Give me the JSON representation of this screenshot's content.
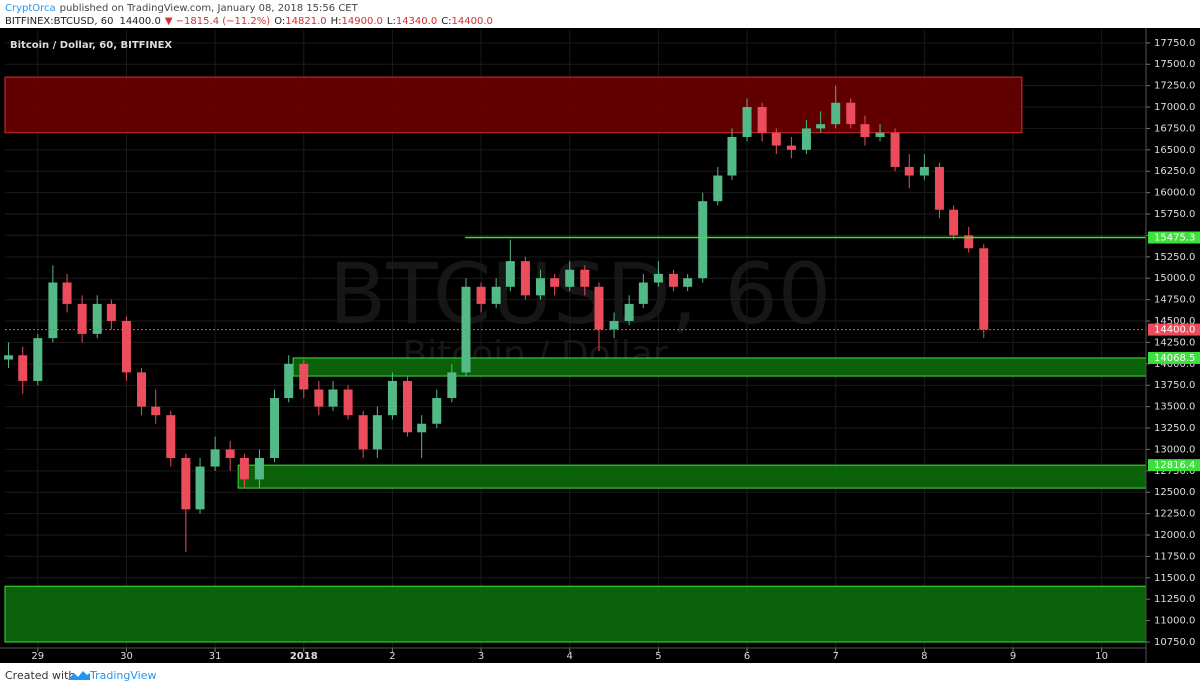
{
  "header": {
    "author": "CryptOrca",
    "published": "published on TradingView.com, January 08, 2018 15:56 CET",
    "symbol": "BITFINEX:BTCUSD, 60",
    "last": "14400.0",
    "change": "▼ −1815.4 (−11.2%)",
    "ohlc": [
      {
        "key": "O:",
        "value": "14821.0"
      },
      {
        "key": "H:",
        "value": "14900.0"
      },
      {
        "key": "L:",
        "value": "14340.0"
      },
      {
        "key": "C:",
        "value": "14400.0"
      }
    ]
  },
  "footer": {
    "created": "Created with",
    "brand": "TradingView"
  },
  "chart_data": {
    "type": "candlestick",
    "title": "Bitcoin / Dollar, 60, BITFINEX",
    "watermark": "BTCUSD, 60",
    "watermark_subtitle": "Bitcoin / Dollar",
    "up_color": "#53b987",
    "down_color": "#eb4d5c",
    "grid": true,
    "xlim": [
      -0.37,
      12.5
    ],
    "ylim": [
      10680,
      17900
    ],
    "xticks": [
      {
        "value": 0,
        "label": "29"
      },
      {
        "value": 1,
        "label": "30"
      },
      {
        "value": 2,
        "label": "31"
      },
      {
        "value": 3,
        "label": "2018"
      },
      {
        "value": 4,
        "label": "2"
      },
      {
        "value": 5,
        "label": "3"
      },
      {
        "value": 6,
        "label": "4"
      },
      {
        "value": 7,
        "label": "5"
      },
      {
        "value": 8,
        "label": "6"
      },
      {
        "value": 9,
        "label": "7"
      },
      {
        "value": 10,
        "label": "8"
      },
      {
        "value": 11,
        "label": "9"
      },
      {
        "value": 12,
        "label": "10"
      }
    ],
    "yticks": [
      {
        "value": 10750,
        "label": "10750.0"
      },
      {
        "value": 11000,
        "label": "11000.0"
      },
      {
        "value": 11250,
        "label": "11250.0"
      },
      {
        "value": 11500,
        "label": "11500.0"
      },
      {
        "value": 11750,
        "label": "11750.0"
      },
      {
        "value": 12000,
        "label": "12000.0"
      },
      {
        "value": 12250,
        "label": "12250.0"
      },
      {
        "value": 12500,
        "label": "12500.0"
      },
      {
        "value": 12750,
        "label": "12750.0"
      },
      {
        "value": 13000,
        "label": "13000.0"
      },
      {
        "value": 13250,
        "label": "13250.0"
      },
      {
        "value": 13500,
        "label": "13500.0"
      },
      {
        "value": 13750,
        "label": "13750.0"
      },
      {
        "value": 14000,
        "label": "14000.0"
      },
      {
        "value": 14250,
        "label": "14250.0"
      },
      {
        "value": 14500,
        "label": "14500.0"
      },
      {
        "value": 14750,
        "label": "14750.0"
      },
      {
        "value": 15000,
        "label": "15000.0"
      },
      {
        "value": 15250,
        "label": "15250.0"
      },
      {
        "value": 15500,
        "label": "15500.0"
      },
      {
        "value": 15750,
        "label": "15750.0"
      },
      {
        "value": 16000,
        "label": "16000.0"
      },
      {
        "value": 16250,
        "label": "16250.0"
      },
      {
        "value": 16500,
        "label": "16500.0"
      },
      {
        "value": 16750,
        "label": "16750.0"
      },
      {
        "value": 17000,
        "label": "17000.0"
      },
      {
        "value": 17250,
        "label": "17250.0"
      },
      {
        "value": 17500,
        "label": "17500.0"
      },
      {
        "value": 17750,
        "label": "17750.0"
      }
    ],
    "x": [
      -0.33,
      -0.17,
      0,
      0.17,
      0.33,
      0.5,
      0.67,
      0.83,
      1,
      1.17,
      1.33,
      1.5,
      1.67,
      1.83,
      2,
      2.17,
      2.33,
      2.5,
      2.67,
      2.83,
      3,
      3.17,
      3.33,
      3.5,
      3.67,
      3.83,
      4,
      4.17,
      4.33,
      4.5,
      4.67,
      4.83,
      5,
      5.17,
      5.33,
      5.5,
      5.67,
      5.83,
      6,
      6.17,
      6.33,
      6.5,
      6.67,
      6.83,
      7,
      7.17,
      7.33,
      7.5,
      7.67,
      7.83,
      8,
      8.17,
      8.33,
      8.5,
      8.67,
      8.83,
      9,
      9.17,
      9.33,
      9.5,
      9.67,
      9.83,
      10,
      10.17,
      10.33,
      10.5,
      10.67
    ],
    "open": [
      14050,
      14100,
      13800,
      14300,
      14950,
      14700,
      14350,
      14700,
      14500,
      13900,
      13500,
      13400,
      12900,
      12300,
      12800,
      13000,
      12900,
      12650,
      12900,
      13600,
      14000,
      13700,
      13500,
      13700,
      13400,
      13000,
      13400,
      13800,
      13200,
      13300,
      13600,
      13900,
      14900,
      14700,
      14900,
      15200,
      14800,
      15000,
      14900,
      15100,
      14900,
      14400,
      14500,
      14700,
      14950,
      15050,
      14900,
      15000,
      15900,
      16200,
      16650,
      17000,
      16700,
      16550,
      16500,
      16750,
      16800,
      17050,
      16800,
      16650,
      16700,
      16300,
      16200,
      16300,
      15800,
      15500,
      15350
    ],
    "high": [
      14250,
      14200,
      14350,
      15150,
      15050,
      14800,
      14800,
      14750,
      14550,
      13950,
      13700,
      13450,
      12950,
      12900,
      13150,
      13100,
      12950,
      13000,
      13700,
      14100,
      14050,
      13800,
      13800,
      13750,
      13450,
      13500,
      13900,
      13850,
      13400,
      13700,
      14000,
      15000,
      14950,
      15000,
      15450,
      15250,
      15100,
      15050,
      15200,
      15150,
      14950,
      14600,
      14800,
      15050,
      15200,
      15100,
      15050,
      16000,
      16300,
      16750,
      17100,
      17050,
      16750,
      16650,
      16850,
      16950,
      17250,
      17100,
      16900,
      16800,
      16750,
      16450,
      16450,
      16350,
      15850,
      15600,
      15400
    ],
    "low": [
      13950,
      13650,
      13750,
      14250,
      14600,
      14250,
      14300,
      14400,
      13800,
      13400,
      13300,
      12800,
      11800,
      12250,
      12750,
      12750,
      12550,
      12550,
      12850,
      13550,
      13600,
      13400,
      13450,
      13350,
      12900,
      12900,
      13350,
      13150,
      12900,
      13250,
      13550,
      13850,
      14600,
      14650,
      14850,
      14750,
      14750,
      14800,
      14850,
      14800,
      14150,
      14300,
      14450,
      14650,
      14900,
      14850,
      14850,
      14950,
      15850,
      16150,
      16600,
      16600,
      16450,
      16400,
      16450,
      16700,
      16750,
      16750,
      16550,
      16600,
      16250,
      16050,
      16150,
      15700,
      15450,
      15300,
      14300
    ],
    "close": [
      14100,
      13800,
      14300,
      14950,
      14700,
      14350,
      14700,
      14500,
      13900,
      13500,
      13400,
      12900,
      12300,
      12800,
      13000,
      12900,
      12650,
      12900,
      13600,
      14000,
      13700,
      13500,
      13700,
      13400,
      13000,
      13400,
      13800,
      13200,
      13300,
      13600,
      13900,
      14900,
      14700,
      14900,
      15200,
      14800,
      15000,
      14900,
      15100,
      14900,
      14400,
      14500,
      14700,
      14950,
      15050,
      14900,
      15000,
      15900,
      16200,
      16650,
      17000,
      16700,
      16550,
      16500,
      16750,
      16800,
      17050,
      16800,
      16650,
      16700,
      16300,
      16200,
      16300,
      15800,
      15500,
      15350,
      14400
    ],
    "zones": [
      {
        "low": 16700,
        "high": 17350,
        "x_start": -0.37,
        "x_end": 11.1,
        "color": "#6b0000",
        "border": "#d32f2f"
      },
      {
        "low": 13857,
        "high": 14068.5,
        "x_start": 2.88,
        "x_end": 12.5,
        "color": "#0b6b0b",
        "border": "#3de03d"
      },
      {
        "low": 12548,
        "high": 12816.4,
        "x_start": 2.26,
        "x_end": 12.5,
        "color": "#0b6b0b",
        "border": "#3de03d"
      },
      {
        "low": 10750,
        "high": 11402,
        "x_start": -0.37,
        "x_end": 12.5,
        "color": "#0b6b0b",
        "border": "#3de03d"
      }
    ],
    "levels": [
      {
        "value": 15475.3,
        "label": "15475.3",
        "x_start": 4.82,
        "color": "#3de03d"
      },
      {
        "value": 14068.5,
        "label": "14068.5",
        "x_start": 12.5,
        "color": "#3de03d"
      },
      {
        "value": 12816.4,
        "label": "12816.4",
        "x_start": 12.5,
        "color": "#3de03d"
      },
      {
        "value": 14400,
        "label": "14400.0",
        "x_start": -0.37,
        "color": "#eb4d5c",
        "dashed": true
      }
    ]
  }
}
